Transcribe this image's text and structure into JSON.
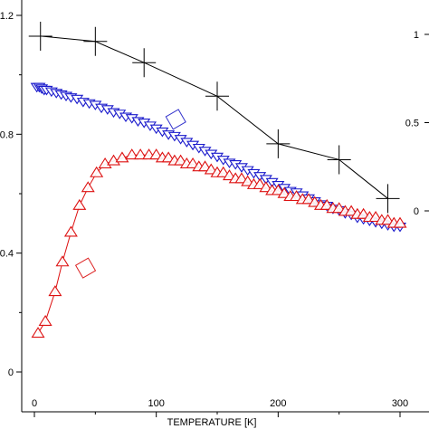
{
  "chart_data": {
    "type": "scatter",
    "title": "",
    "xlabel": "TEMPERATURE [K]",
    "ylabel": "",
    "y2label": "",
    "xlim": [
      -10,
      305
    ],
    "ylim": [
      -0.06,
      1.22
    ],
    "y2lim": [
      -0.55,
      1.1
    ],
    "xticks": [
      0,
      100,
      200,
      300
    ],
    "yticks": [
      0,
      0.4,
      0.8,
      1.2
    ],
    "y2ticks": [
      0,
      0.5,
      1
    ],
    "xtick_labels": [
      "0",
      "100",
      "200",
      "300"
    ],
    "ytick_labels": [
      "0",
      "0.4",
      "0.8",
      "1.2"
    ],
    "y2tick_labels": [
      "0",
      "0.5",
      "1"
    ],
    "grid": false,
    "series": [
      {
        "axis": "right",
        "marker": "plus",
        "line": true,
        "color": "#000000",
        "x": [
          5,
          50,
          90,
          150,
          200,
          250,
          290
        ],
        "y": [
          0.99,
          0.96,
          0.84,
          0.65,
          0.38,
          0.29,
          0.07
        ]
      },
      {
        "axis": "left",
        "marker": "triangle-down",
        "line": false,
        "color": "#1a1acc",
        "x": [
          2,
          4,
          6,
          8,
          10,
          14,
          18,
          22,
          26,
          30,
          35,
          40,
          45,
          50,
          55,
          60,
          65,
          70,
          75,
          80,
          85,
          90,
          95,
          100,
          105,
          110,
          115,
          120,
          125,
          130,
          135,
          140,
          145,
          150,
          155,
          160,
          165,
          170,
          175,
          180,
          185,
          190,
          195,
          200,
          205,
          210,
          215,
          220,
          225,
          230,
          235,
          240,
          245,
          250,
          255,
          260,
          265,
          270,
          275,
          280,
          285,
          290,
          295,
          300
        ],
        "y": [
          0.96,
          0.96,
          0.955,
          0.95,
          0.95,
          0.945,
          0.94,
          0.935,
          0.93,
          0.925,
          0.92,
          0.91,
          0.905,
          0.9,
          0.89,
          0.885,
          0.875,
          0.87,
          0.86,
          0.855,
          0.845,
          0.84,
          0.83,
          0.82,
          0.81,
          0.8,
          0.795,
          0.785,
          0.775,
          0.765,
          0.755,
          0.745,
          0.735,
          0.725,
          0.715,
          0.705,
          0.7,
          0.69,
          0.68,
          0.67,
          0.66,
          0.65,
          0.64,
          0.63,
          0.62,
          0.61,
          0.605,
          0.595,
          0.585,
          0.575,
          0.565,
          0.56,
          0.55,
          0.545,
          0.535,
          0.53,
          0.52,
          0.515,
          0.51,
          0.505,
          0.5,
          0.495,
          0.49,
          0.49
        ]
      },
      {
        "axis": "left",
        "marker": "triangle-up",
        "line": true,
        "color": "#dd1111",
        "x": [
          3,
          9,
          17,
          23,
          30,
          37,
          44,
          51,
          58,
          65,
          72,
          80,
          87,
          94,
          100,
          105,
          110,
          115,
          120,
          125,
          130,
          135,
          140,
          145,
          150,
          155,
          160,
          165,
          170,
          175,
          180,
          185,
          190,
          195,
          200,
          205,
          210,
          215,
          220,
          225,
          230,
          235,
          240,
          245,
          250,
          255,
          260,
          265,
          270,
          275,
          280,
          285,
          290,
          295,
          300
        ],
        "y": [
          0.13,
          0.17,
          0.27,
          0.37,
          0.47,
          0.56,
          0.62,
          0.67,
          0.7,
          0.71,
          0.72,
          0.73,
          0.73,
          0.73,
          0.73,
          0.72,
          0.72,
          0.71,
          0.71,
          0.7,
          0.7,
          0.69,
          0.69,
          0.68,
          0.67,
          0.67,
          0.66,
          0.65,
          0.65,
          0.64,
          0.63,
          0.63,
          0.62,
          0.61,
          0.61,
          0.6,
          0.59,
          0.59,
          0.58,
          0.58,
          0.57,
          0.56,
          0.56,
          0.55,
          0.55,
          0.54,
          0.54,
          0.53,
          0.53,
          0.52,
          0.52,
          0.51,
          0.51,
          0.5,
          0.5
        ]
      }
    ],
    "annotations": [
      {
        "marker": "square",
        "color": "#3333cc",
        "x": 116,
        "y": 0.85
      },
      {
        "marker": "square",
        "color": "#dd2222",
        "x": 42,
        "y": 0.35
      }
    ]
  }
}
